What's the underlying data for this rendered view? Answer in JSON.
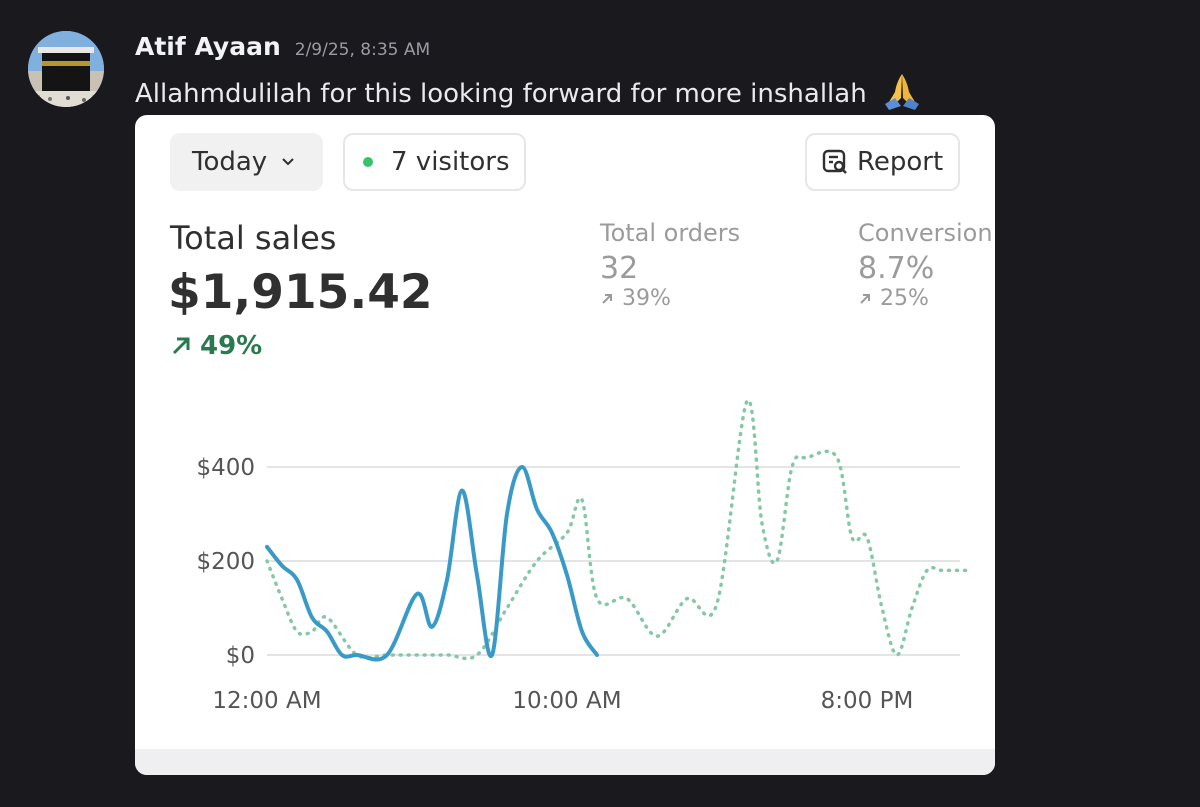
{
  "message": {
    "username": "Atif Ayaan",
    "timestamp": "2/9/25, 8:35 AM",
    "text": "Allahmdulilah for this looking forward for more inshallah",
    "emoji": "folded-hands"
  },
  "dashboard": {
    "date_filter": "Today",
    "visitors": "7 visitors",
    "report_label": "Report",
    "total_sales": {
      "label": "Total sales",
      "value": "$1,915.42",
      "change": "49%"
    },
    "total_orders": {
      "label": "Total orders",
      "value": "32",
      "change": "39%"
    },
    "conversion": {
      "label": "Conversion",
      "value": "8.7%",
      "change": "25%"
    }
  },
  "colors": {
    "accent_line": "#3a9ac7",
    "comparison_line": "#86c7a8",
    "positive": "#2b7a4f",
    "visitor_dot": "#35c46d"
  },
  "chart_data": {
    "type": "line",
    "x_ticks": [
      "12:00 AM",
      "10:00 AM",
      "8:00 PM"
    ],
    "y_ticks": [
      "$0",
      "$200",
      "$400"
    ],
    "ylim": [
      0,
      400
    ],
    "x_unit": "hour_of_day",
    "series": [
      {
        "style": "solid",
        "x": [
          0,
          0.5,
          1,
          1.5,
          2,
          2.5,
          3,
          4,
          5,
          5.5,
          6,
          6.5,
          7,
          7.5,
          8,
          8.5,
          9,
          9.5,
          10,
          10.5,
          11
        ],
        "values": [
          230,
          190,
          160,
          80,
          50,
          0,
          0,
          0,
          130,
          60,
          160,
          350,
          170,
          0,
          300,
          400,
          310,
          260,
          170,
          50,
          0
        ]
      },
      {
        "style": "dotted",
        "x": [
          0,
          0.5,
          1,
          1.5,
          2,
          3,
          4,
          5,
          6,
          7,
          8,
          9,
          10,
          10.5,
          11,
          12,
          13,
          14,
          15,
          16,
          16.5,
          17,
          17.5,
          18,
          19,
          19.5,
          20,
          20.5,
          21,
          21.5,
          22,
          22.5,
          23,
          23.5
        ],
        "values": [
          200,
          120,
          50,
          50,
          80,
          0,
          0,
          0,
          0,
          0,
          100,
          200,
          260,
          330,
          120,
          120,
          40,
          120,
          110,
          540,
          280,
          200,
          400,
          420,
          420,
          250,
          250,
          100,
          0,
          100,
          180,
          180,
          180,
          180
        ]
      }
    ]
  }
}
